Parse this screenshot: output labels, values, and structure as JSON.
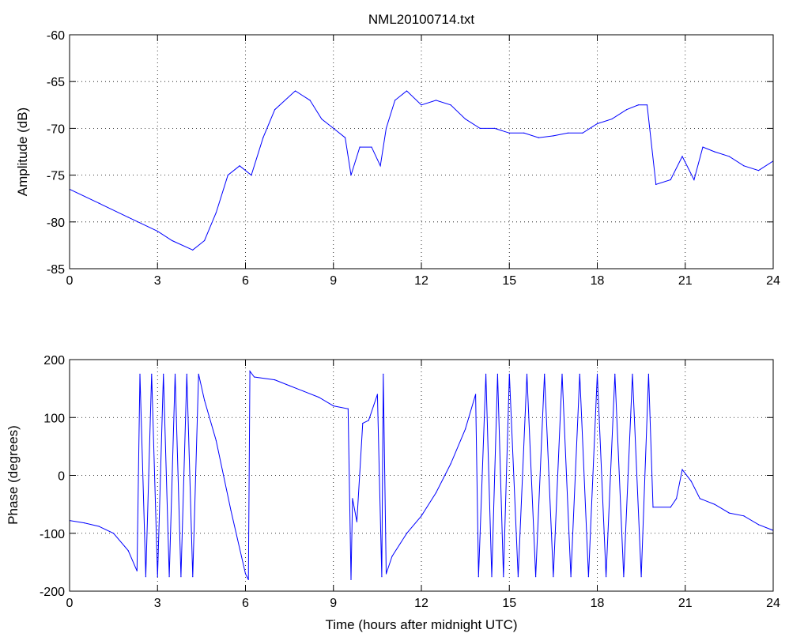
{
  "chart_data": [
    {
      "type": "line",
      "title": "NML20100714.txt",
      "xlabel": "",
      "ylabel": "Amplitude (dB)",
      "xlim": [
        0,
        24
      ],
      "ylim": [
        -85,
        -60
      ],
      "xticks": [
        "0",
        "3",
        "6",
        "9",
        "12",
        "15",
        "18",
        "21",
        "24"
      ],
      "yticks": [
        "-85",
        "-80",
        "-75",
        "-70",
        "-65",
        "-60"
      ],
      "grid": true,
      "color": "#0000ff",
      "x": [
        0,
        1,
        2,
        3,
        3.5,
        4.2,
        4.6,
        5.0,
        5.4,
        5.8,
        6.2,
        6.6,
        7.0,
        7.7,
        8.2,
        8.6,
        9.0,
        9.4,
        9.6,
        9.9,
        10.3,
        10.6,
        10.8,
        11.1,
        11.5,
        12.0,
        12.5,
        13.0,
        13.5,
        14.0,
        14.5,
        15.0,
        15.5,
        16.0,
        16.5,
        17.0,
        17.5,
        18.0,
        18.5,
        19.0,
        19.4,
        19.7,
        20.0,
        20.5,
        20.9,
        21.3,
        21.6,
        22.0,
        22.5,
        23.0,
        23.5,
        24.0
      ],
      "values": [
        -76.5,
        -78,
        -79.5,
        -81,
        -82,
        -83,
        -82,
        -79,
        -75,
        -74,
        -75,
        -71,
        -68,
        -66,
        -67,
        -69,
        -70,
        -71,
        -75,
        -72,
        -72,
        -74,
        -70,
        -67,
        -66,
        -67.5,
        -67,
        -67.5,
        -69,
        -70,
        -70,
        -70.5,
        -70.5,
        -71,
        -70.8,
        -70.5,
        -70.5,
        -69.5,
        -69,
        -68,
        -67.5,
        -67.5,
        -76,
        -75.5,
        -73,
        -75.5,
        -72,
        -72.5,
        -73,
        -74,
        -74.5,
        -73.5
      ]
    },
    {
      "type": "line",
      "title": "",
      "xlabel": "Time (hours after midnight UTC)",
      "ylabel": "Phase (degrees)",
      "xlim": [
        0,
        24
      ],
      "ylim": [
        -200,
        200
      ],
      "xticks": [
        "0",
        "3",
        "6",
        "9",
        "12",
        "15",
        "18",
        "21",
        "24"
      ],
      "yticks": [
        "-200",
        "-100",
        "0",
        "100",
        "200"
      ],
      "grid": true,
      "color": "#0000ff",
      "x": [
        0,
        0.5,
        1,
        1.5,
        2,
        2.3,
        2.4,
        2.6,
        2.8,
        3.0,
        3.2,
        3.4,
        3.6,
        3.8,
        4.0,
        4.2,
        4.4,
        4.6,
        5.0,
        5.5,
        6.0,
        6.1,
        6.15,
        6.3,
        7.0,
        7.5,
        8.0,
        8.5,
        9.0,
        9.5,
        9.6,
        9.65,
        9.8,
        10.0,
        10.2,
        10.5,
        10.65,
        10.7,
        10.8,
        11.0,
        11.5,
        12.0,
        12.5,
        13.0,
        13.5,
        13.85,
        13.95,
        14.2,
        14.4,
        14.6,
        14.8,
        15.0,
        15.3,
        15.6,
        15.9,
        16.2,
        16.5,
        16.8,
        17.1,
        17.4,
        17.7,
        18.0,
        18.3,
        18.6,
        18.9,
        19.2,
        19.5,
        19.75,
        19.9,
        20.5,
        20.7,
        20.9,
        21.2,
        21.5,
        22.0,
        22.5,
        23.0,
        23.5,
        24.0
      ],
      "values": [
        -78,
        -82,
        -88,
        -100,
        -130,
        -165,
        175,
        -175,
        175,
        -175,
        175,
        -175,
        175,
        -175,
        175,
        -175,
        175,
        130,
        60,
        -60,
        -170,
        -180,
        180,
        170,
        165,
        155,
        145,
        135,
        120,
        115,
        -180,
        -40,
        -80,
        90,
        95,
        140,
        -175,
        175,
        -170,
        -140,
        -100,
        -70,
        -30,
        20,
        80,
        140,
        -175,
        175,
        -175,
        175,
        -175,
        175,
        -175,
        175,
        -175,
        175,
        -175,
        175,
        -175,
        175,
        -175,
        175,
        -175,
        175,
        -175,
        175,
        -175,
        175,
        -55,
        -55,
        -40,
        10,
        -10,
        -40,
        -50,
        -65,
        -70,
        -85,
        -95
      ]
    }
  ]
}
